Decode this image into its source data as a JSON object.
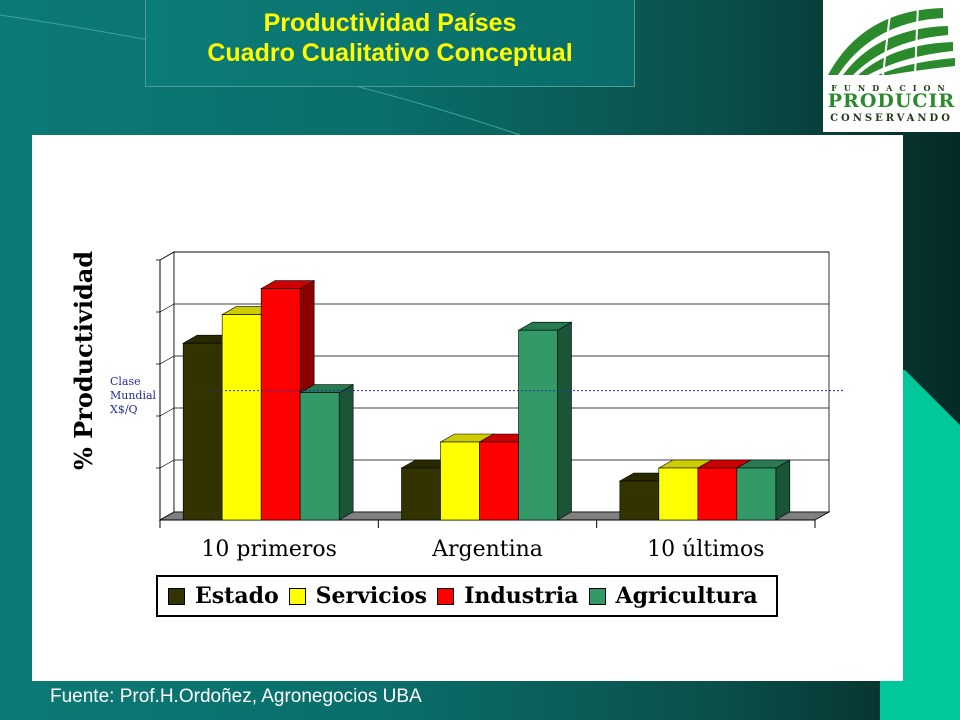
{
  "header": {
    "title_line1": "Productividad Países",
    "title_line2": "Cuadro Cualitativo Conceptual"
  },
  "logo": {
    "top": "FUNDACION",
    "middle": "PRODUCIR",
    "bottom": "CONSERVANDO"
  },
  "footer": {
    "source": "Fuente: Prof.H.Ordoñez, Agronegocios UBA"
  },
  "chart_data": {
    "type": "bar",
    "ylabel": "% Productividad",
    "categories": [
      "10 primeros",
      "Argentina",
      "10 últimos"
    ],
    "series": [
      {
        "name": "Estado",
        "color": "#333300",
        "values": [
          3.4,
          1.0,
          0.75
        ]
      },
      {
        "name": "Servicios",
        "color": "#ffff00",
        "values": [
          3.95,
          1.5,
          1.0
        ]
      },
      {
        "name": "Industria",
        "color": "#ff0000",
        "values": [
          4.45,
          1.5,
          1.0
        ]
      },
      {
        "name": "Agricultura",
        "color": "#339966",
        "values": [
          2.45,
          3.65,
          1.0
        ]
      }
    ],
    "ylim": [
      0,
      5
    ],
    "grid": true,
    "reference_line": {
      "label": [
        "Clase",
        "Mundial",
        "X$/Q"
      ],
      "value": 2.45
    }
  }
}
